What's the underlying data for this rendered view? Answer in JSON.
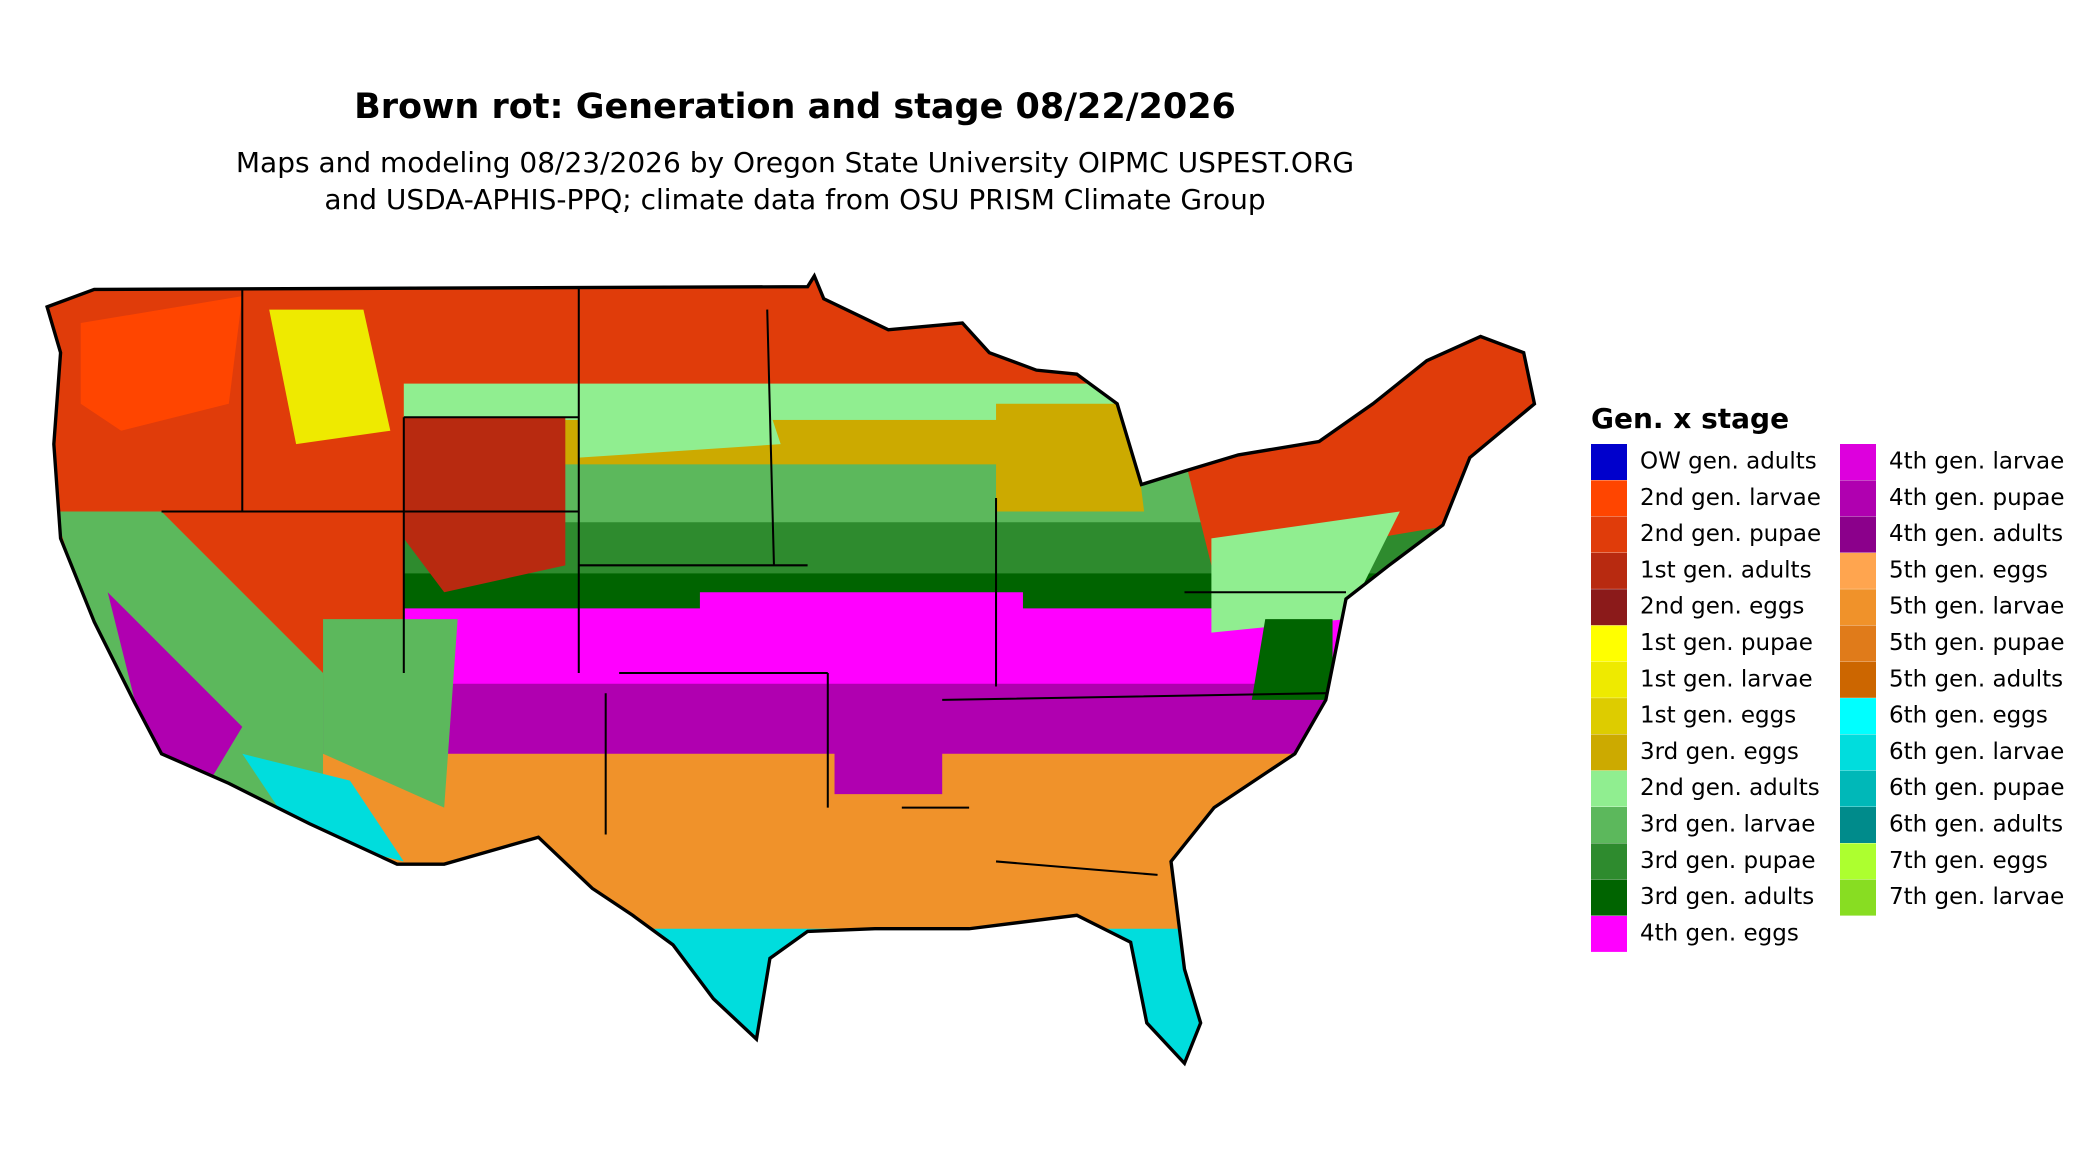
{
  "title": "Brown rot: Generation and stage 08/22/2026",
  "subtitle": [
    "Maps and modeling 08/23/2026 by Oregon State University OIPMC USPEST.ORG",
    "and USDA-APHIS-PPQ; climate data from OSU PRISM Climate Group"
  ],
  "legend": {
    "title": "Gen. x stage",
    "items": [
      {
        "name": "OW gen. adults",
        "color": "#0000cc"
      },
      {
        "name": "2nd gen. larvae",
        "color": "#ff4500"
      },
      {
        "name": "2nd gen. pupae",
        "color": "#e03c0a"
      },
      {
        "name": "1st gen. adults",
        "color": "#b82a10"
      },
      {
        "name": "2nd gen. eggs",
        "color": "#8b1a1a"
      },
      {
        "name": "1st gen. pupae",
        "color": "#ffff00"
      },
      {
        "name": "1st gen. larvae",
        "color": "#eeea00"
      },
      {
        "name": "1st gen. eggs",
        "color": "#ddcc00"
      },
      {
        "name": "3rd gen. eggs",
        "color": "#ccaa00"
      },
      {
        "name": "2nd gen. adults",
        "color": "#90ee90"
      },
      {
        "name": "3rd gen. larvae",
        "color": "#5cb85c"
      },
      {
        "name": "3rd gen. pupae",
        "color": "#2e8b2e"
      },
      {
        "name": "3rd gen. adults",
        "color": "#006400"
      },
      {
        "name": "4th gen. eggs",
        "color": "#ff00ff"
      },
      {
        "name": "4th gen. larvae",
        "color": "#dd00dd"
      },
      {
        "name": "4th gen. pupae",
        "color": "#b000b0"
      },
      {
        "name": "4th gen. adults",
        "color": "#8b008b"
      },
      {
        "name": "5th gen. eggs",
        "color": "#ffa54f"
      },
      {
        "name": "5th gen. larvae",
        "color": "#f0922a"
      },
      {
        "name": "5th gen. pupae",
        "color": "#e07b1a"
      },
      {
        "name": "5th gen. adults",
        "color": "#cc6600"
      },
      {
        "name": "6th gen. eggs",
        "color": "#00ffff"
      },
      {
        "name": "6th gen. larvae",
        "color": "#00dddd"
      },
      {
        "name": "6th gen. pupae",
        "color": "#00b8b8"
      },
      {
        "name": "6th gen. adults",
        "color": "#008b8b"
      },
      {
        "name": "7th gen. eggs",
        "color": "#adff2f"
      },
      {
        "name": "7th gen. larvae",
        "color": "#88dd22"
      }
    ]
  }
}
